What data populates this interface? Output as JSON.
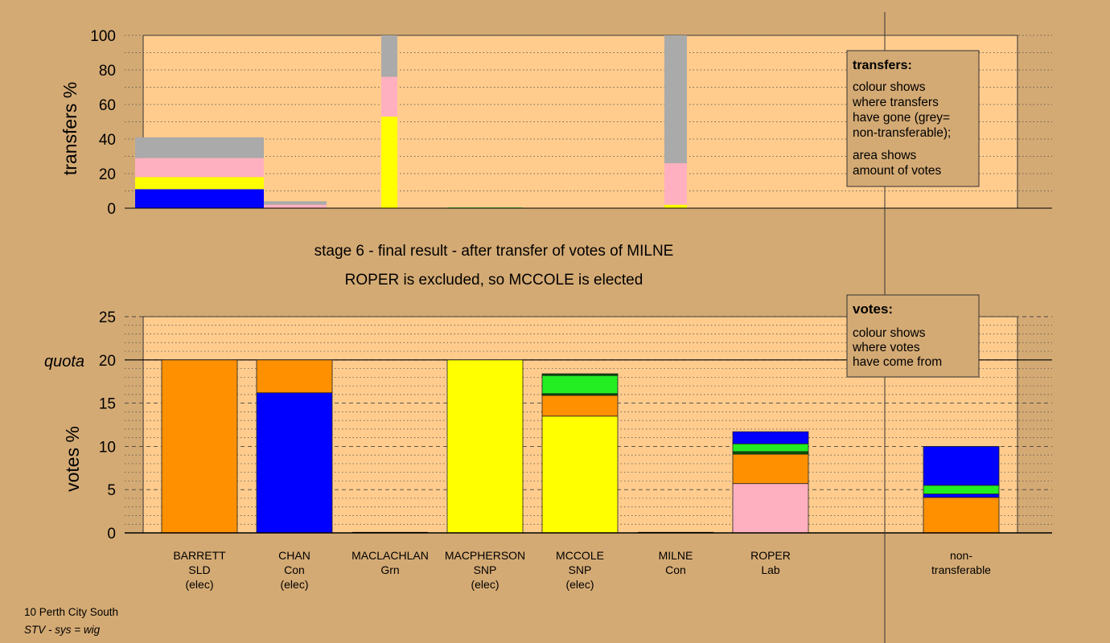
{
  "colors": {
    "background": "#d4aa74",
    "plot_fill": "#ffcc8d",
    "blue": "#0000ff",
    "yellow": "#ffff00",
    "pink": "#ffb0c0",
    "grey": "#aaaaaa",
    "orange": "#ff9000",
    "green": "#22ee22",
    "dark_green": "#005500"
  },
  "headings": {
    "line1": "stage 6 - final result - after transfer of votes of MILNE",
    "line2": "ROPER is excluded, so MCCOLE is elected"
  },
  "footer": {
    "line1": "10 Perth City South",
    "line2": "STV - sys = wig"
  },
  "chart_data": [
    {
      "type": "bar",
      "name": "transfers",
      "ylabel": "transfers %",
      "ylim": [
        0,
        100
      ],
      "yticks": [
        0,
        20,
        40,
        60,
        80,
        100
      ],
      "grid": "dotted every 10",
      "legend": {
        "title": "transfers:",
        "lines1": [
          "colour shows",
          "where transfers",
          "have gone (grey=",
          "non-transferable);"
        ],
        "lines2": [
          "area shows",
          "amount of votes"
        ]
      },
      "bars": [
        {
          "candidate": "BARRETT",
          "stack": [
            {
              "color": "blue",
              "value": 11
            },
            {
              "color": "yellow",
              "value": 7
            },
            {
              "color": "pink",
              "value": 11
            },
            {
              "color": "grey",
              "value": 12
            }
          ]
        },
        {
          "candidate": "CHAN",
          "stack": [
            {
              "color": "pink",
              "value": 2
            },
            {
              "color": "grey",
              "value": 2
            }
          ]
        },
        {
          "candidate": "MACLACHLAN",
          "stack": [
            {
              "color": "yellow",
              "value": 53
            },
            {
              "color": "pink",
              "value": 23
            },
            {
              "color": "grey",
              "value": 24
            }
          ]
        },
        {
          "candidate": "MACPHERSON",
          "stack": [
            {
              "color": "green",
              "value": 0.4
            }
          ]
        },
        {
          "candidate": "MILNE",
          "stack": [
            {
              "color": "yellow",
              "value": 2
            },
            {
              "color": "pink",
              "value": 24
            },
            {
              "color": "grey",
              "value": 74
            }
          ]
        }
      ]
    },
    {
      "type": "bar",
      "name": "votes",
      "ylabel": "votes %",
      "ylim": [
        0,
        25
      ],
      "yticks": [
        0,
        5,
        10,
        15,
        20,
        25
      ],
      "quota": {
        "value": 20,
        "label": "quota"
      },
      "grid": "dashed every 5, dotted every 1",
      "legend": {
        "title": "votes:",
        "lines": [
          "colour shows",
          "where votes",
          "have come from"
        ]
      },
      "categories": [
        {
          "lines": [
            "BARRETT",
            "SLD",
            "(elec)"
          ]
        },
        {
          "lines": [
            "CHAN",
            "Con",
            "(elec)"
          ]
        },
        {
          "lines": [
            "MACLACHLAN",
            "Grn"
          ]
        },
        {
          "lines": [
            "MACPHERSON",
            "SNP",
            "(elec)"
          ]
        },
        {
          "lines": [
            "MCCOLE",
            "SNP",
            "(elec)"
          ]
        },
        {
          "lines": [
            "MILNE",
            "Con"
          ]
        },
        {
          "lines": [
            "ROPER",
            "Lab"
          ]
        },
        {
          "lines": [
            "non-",
            "transferable"
          ]
        }
      ],
      "bars": [
        {
          "candidate": "BARRETT",
          "stack": [
            {
              "color": "orange",
              "value": 20
            }
          ]
        },
        {
          "candidate": "CHAN",
          "stack": [
            {
              "color": "blue",
              "value": 16.2
            },
            {
              "color": "orange",
              "value": 3.8
            }
          ]
        },
        {
          "candidate": "MACLACHLAN",
          "stack": []
        },
        {
          "candidate": "MACPHERSON",
          "stack": [
            {
              "color": "yellow",
              "value": 20
            }
          ]
        },
        {
          "candidate": "MCCOLE",
          "stack": [
            {
              "color": "yellow",
              "value": 13.5
            },
            {
              "color": "orange",
              "value": 2.4
            },
            {
              "color": "dark_green",
              "value": 0.2
            },
            {
              "color": "green",
              "value": 2.1
            },
            {
              "color": "dark_green",
              "value": 0.2
            }
          ]
        },
        {
          "candidate": "MILNE",
          "stack": []
        },
        {
          "candidate": "ROPER",
          "stack": [
            {
              "color": "pink",
              "value": 5.7
            },
            {
              "color": "orange",
              "value": 3.4
            },
            {
              "color": "dark_green",
              "value": 0.3
            },
            {
              "color": "green",
              "value": 0.9
            },
            {
              "color": "blue",
              "value": 1.4
            }
          ]
        },
        {
          "candidate": "non-transferable",
          "stack": [
            {
              "color": "orange",
              "value": 4.1
            },
            {
              "color": "blue",
              "value": 0.4
            },
            {
              "color": "green",
              "value": 1.0
            },
            {
              "color": "blue",
              "value": 4.5
            }
          ]
        }
      ]
    }
  ]
}
